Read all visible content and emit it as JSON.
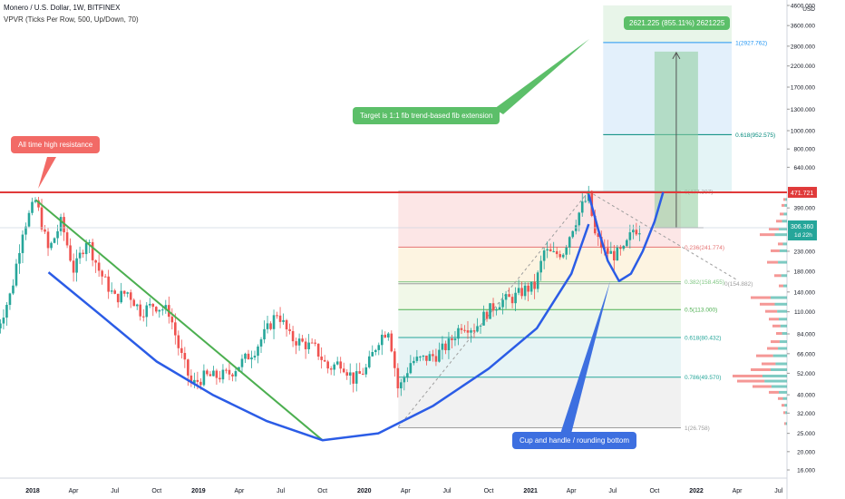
{
  "header": {
    "symbol_line": "Monero / U.S. Dollar, 1W, BITFINEX",
    "indicator_line": "VPVR (Ticks Per Row, 500, Up/Down, 70)"
  },
  "callouts": {
    "ath": "All time high resistance",
    "target": "Target is 1:1 fib trend-based fib extension",
    "target_box": "2621.225 (855.11%) 2621225",
    "cup": "Cup and handle / rounding bottom"
  },
  "price_badges": {
    "resistance": "471.721",
    "last_price": "306.360",
    "countdown": "1d 22h"
  },
  "colors": {
    "up": "#26a69a",
    "down": "#ef5350",
    "resistance": "#e03a3a",
    "trendline": "#4caf50",
    "cup_curve": "#2b5ce6",
    "cup_callout": "#3d6fe0",
    "target_callout": "#5cbf69",
    "ath_callout": "#f26a66",
    "target_zone": "#8ccc9a",
    "fib_blue": "#2196f3"
  },
  "chart_data": {
    "type": "candlestick",
    "yscale": "log",
    "ylabel": "USD",
    "y_ticks": [
      16,
      20,
      25,
      32,
      40,
      52,
      66,
      84,
      110,
      140,
      180,
      230,
      390,
      640,
      800,
      1000,
      1300,
      1700,
      2200,
      2800,
      3600,
      4600
    ],
    "y_tick_labels": [
      "16.000",
      "20.000",
      "25.000",
      "32.000",
      "40.000",
      "52.000",
      "66.000",
      "84.000",
      "110.000",
      "140.000",
      "180.000",
      "230.000",
      "390.000",
      "640.000",
      "800.000",
      "1000.000",
      "1300.000",
      "1700.000",
      "2200.000",
      "2800.000",
      "3600.000",
      "4600.000"
    ],
    "x_axis_labels": [
      {
        "label": "2018",
        "date": "2018-01-01"
      },
      {
        "label": "Apr",
        "date": "2018-04-01"
      },
      {
        "label": "Jul",
        "date": "2018-07-01"
      },
      {
        "label": "Oct",
        "date": "2018-10-01"
      },
      {
        "label": "2019",
        "date": "2019-01-01"
      },
      {
        "label": "Apr",
        "date": "2019-04-01"
      },
      {
        "label": "Jul",
        "date": "2019-07-01"
      },
      {
        "label": "Oct",
        "date": "2019-10-01"
      },
      {
        "label": "2020",
        "date": "2020-01-01"
      },
      {
        "label": "Apr",
        "date": "2020-04-01"
      },
      {
        "label": "Jul",
        "date": "2020-07-01"
      },
      {
        "label": "Oct",
        "date": "2020-10-01"
      },
      {
        "label": "2021",
        "date": "2021-01-01"
      },
      {
        "label": "Apr",
        "date": "2021-04-01"
      },
      {
        "label": "Jul",
        "date": "2021-07-01"
      },
      {
        "label": "Oct",
        "date": "2021-10-01"
      },
      {
        "label": "2022",
        "date": "2022-01-01"
      },
      {
        "label": "Apr",
        "date": "2022-04-01"
      },
      {
        "label": "Jul",
        "date": "2022-07-01"
      }
    ],
    "price_path": [
      [
        "2017-10-15",
        90
      ],
      [
        "2017-11-15",
        140
      ],
      [
        "2017-12-10",
        300
      ],
      [
        "2018-01-08",
        430
      ],
      [
        "2018-02-05",
        230
      ],
      [
        "2018-03-05",
        330
      ],
      [
        "2018-04-02",
        180
      ],
      [
        "2018-04-30",
        270
      ],
      [
        "2018-05-28",
        180
      ],
      [
        "2018-07-01",
        130
      ],
      [
        "2018-07-30",
        140
      ],
      [
        "2018-08-27",
        110
      ],
      [
        "2018-09-24",
        120
      ],
      [
        "2018-10-29",
        110
      ],
      [
        "2018-11-19",
        70
      ],
      [
        "2018-12-17",
        45
      ],
      [
        "2019-01-14",
        50
      ],
      [
        "2019-02-11",
        50
      ],
      [
        "2019-03-11",
        52
      ],
      [
        "2019-04-08",
        60
      ],
      [
        "2019-05-06",
        70
      ],
      [
        "2019-06-03",
        90
      ],
      [
        "2019-06-24",
        110
      ],
      [
        "2019-07-22",
        80
      ],
      [
        "2019-08-19",
        75
      ],
      [
        "2019-09-16",
        70
      ],
      [
        "2019-10-14",
        55
      ],
      [
        "2019-11-11",
        60
      ],
      [
        "2019-12-09",
        48
      ],
      [
        "2020-01-06",
        55
      ],
      [
        "2020-02-03",
        80
      ],
      [
        "2020-02-24",
        90
      ],
      [
        "2020-03-16",
        42
      ],
      [
        "2020-04-13",
        60
      ],
      [
        "2020-05-11",
        62
      ],
      [
        "2020-06-08",
        65
      ],
      [
        "2020-07-06",
        75
      ],
      [
        "2020-08-03",
        95
      ],
      [
        "2020-08-31",
        90
      ],
      [
        "2020-09-28",
        110
      ],
      [
        "2020-10-26",
        125
      ],
      [
        "2020-11-23",
        130
      ],
      [
        "2020-12-21",
        145
      ],
      [
        "2021-01-11",
        150
      ],
      [
        "2021-01-31",
        230
      ],
      [
        "2021-02-21",
        220
      ],
      [
        "2021-03-14",
        230
      ],
      [
        "2021-04-04",
        310
      ],
      [
        "2021-04-25",
        400
      ],
      [
        "2021-05-09",
        450
      ],
      [
        "2021-05-23",
        280
      ],
      [
        "2021-06-13",
        230
      ],
      [
        "2021-07-04",
        220
      ],
      [
        "2021-07-25",
        230
      ],
      [
        "2021-08-15",
        300
      ],
      [
        "2021-09-04",
        306
      ]
    ],
    "fib_levels": [
      {
        "label": "1(2927.762)",
        "value": 2927.762
      },
      {
        "label": "0.618(952.575)",
        "value": 952.575
      },
      {
        "label": "0(477.307)",
        "value": 477.307
      },
      {
        "label": "0.236(241.774)",
        "value": 241.774
      },
      {
        "label": "0.382(158.455)",
        "value": 158.455
      },
      {
        "label": "0(154.882)",
        "value": 154.882
      },
      {
        "label": "0.5(113.000)",
        "value": 113.0
      },
      {
        "label": "0.618(80.432)",
        "value": 80.432
      },
      {
        "label": "0.786(49.570)",
        "value": 49.57
      },
      {
        "label": "1(26.758)",
        "value": 26.758
      }
    ],
    "resistance_price": 471.721,
    "last_price": 306.36,
    "target_price": 2621.225,
    "target_change_pct": "855.11%"
  }
}
